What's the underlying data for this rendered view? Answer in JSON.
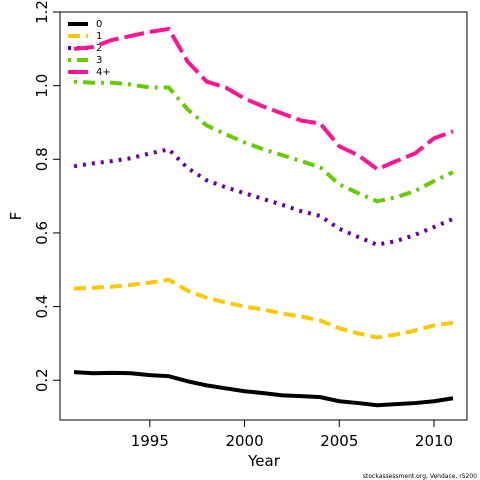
{
  "chart_data": {
    "type": "line",
    "x_label": "Year",
    "y_label": "F",
    "footer": "stockassessment.org, Vendace, r5200",
    "x": [
      1991,
      1992,
      1993,
      1994,
      1995,
      1996,
      1997,
      1998,
      1999,
      2000,
      2001,
      2002,
      2003,
      2004,
      2005,
      2006,
      2007,
      2008,
      2009,
      2010,
      2011
    ],
    "series": [
      {
        "name": "0",
        "color": "#000000",
        "dash": "solid",
        "values": [
          0.222,
          0.219,
          0.22,
          0.219,
          0.214,
          0.211,
          0.197,
          0.186,
          0.178,
          0.17,
          0.165,
          0.159,
          0.157,
          0.154,
          0.143,
          0.138,
          0.132,
          0.135,
          0.138,
          0.143,
          0.151
        ]
      },
      {
        "name": "1",
        "color": "#ffc800",
        "dash": "dashed",
        "values": [
          0.449,
          0.451,
          0.454,
          0.459,
          0.465,
          0.473,
          0.443,
          0.424,
          0.411,
          0.4,
          0.392,
          0.381,
          0.373,
          0.362,
          0.341,
          0.327,
          0.316,
          0.324,
          0.335,
          0.349,
          0.356
        ]
      },
      {
        "name": "2",
        "color": "#6600a6",
        "dash": "dotted",
        "values": [
          0.781,
          0.789,
          0.795,
          0.803,
          0.816,
          0.827,
          0.776,
          0.743,
          0.724,
          0.708,
          0.692,
          0.676,
          0.659,
          0.646,
          0.611,
          0.589,
          0.568,
          0.578,
          0.595,
          0.616,
          0.638
        ]
      },
      {
        "name": "3",
        "color": "#66cc00",
        "dash": "dotdash",
        "values": [
          1.011,
          1.008,
          1.008,
          1.003,
          0.995,
          0.995,
          0.935,
          0.892,
          0.868,
          0.846,
          0.827,
          0.811,
          0.795,
          0.778,
          0.732,
          0.708,
          0.686,
          0.697,
          0.714,
          0.741,
          0.765
        ]
      },
      {
        "name": "4+",
        "color": "#ff1493",
        "dash": "longdash",
        "values": [
          1.1,
          1.105,
          1.124,
          1.135,
          1.146,
          1.154,
          1.065,
          1.011,
          0.995,
          0.965,
          0.943,
          0.924,
          0.905,
          0.897,
          0.835,
          0.811,
          0.773,
          0.795,
          0.816,
          0.857,
          0.876
        ]
      }
    ],
    "xlim": [
      1990.26,
      2011.74
    ],
    "ylim": [
      0.092,
      1.2
    ],
    "xticks": [
      1995,
      2000,
      2005,
      2010
    ],
    "yticks": [
      0.2,
      0.4,
      0.6,
      0.8,
      {
        "value": 1,
        "label": "1.0"
      },
      1.2
    ],
    "legend": "top-left"
  }
}
